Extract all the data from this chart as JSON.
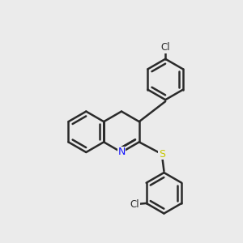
{
  "background_color": "#ebebeb",
  "bond_color": "#2a2a2a",
  "bond_lw": 1.8,
  "N_color": "#1414ff",
  "S_color": "#c8c800",
  "Cl_color": "#2a2a2a",
  "figsize": [
    3.0,
    3.0
  ],
  "dpi": 100,
  "xlim": [
    -0.52,
    0.78
  ],
  "ylim": [
    -0.68,
    0.78
  ]
}
